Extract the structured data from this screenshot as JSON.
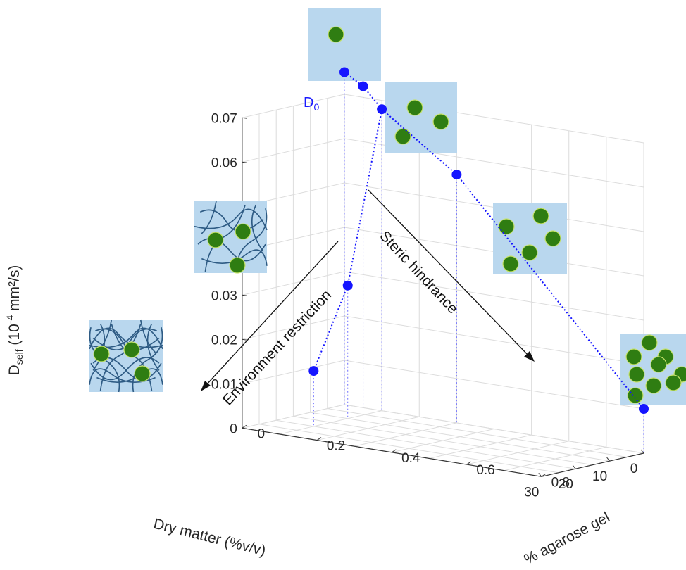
{
  "chart_data": {
    "type": "scatter",
    "projection": "3d",
    "grid": true,
    "axes": {
      "x": {
        "label": "Dry matter (%v/v)",
        "range": [
          0,
          30
        ],
        "ticks": [
          "0",
          "10",
          "20",
          "30"
        ]
      },
      "y": {
        "label": "% agarose gel",
        "range": [
          0,
          0.8
        ],
        "ticks": [
          "0",
          "0.2",
          "0.4",
          "0.6",
          "0.8"
        ]
      },
      "z": {
        "label_main": "D",
        "label_sub": "self",
        "label_rest": " (10",
        "label_sup": "-4",
        "label_end": " mm²/s)",
        "range": [
          0,
          0.07
        ],
        "ticks": [
          "0",
          "0.01",
          "0.02",
          "0.03",
          "0.04",
          "0.05",
          "0.06",
          "0.07"
        ]
      }
    },
    "series": [
      {
        "points": [
          {
            "dry_matter": 0,
            "agarose": 0,
            "d_self": 0.075
          },
          {
            "dry_matter": 0,
            "agarose": 0.05,
            "d_self": 0.0725
          },
          {
            "dry_matter": 0,
            "agarose": 0.1,
            "d_self": 0.068
          },
          {
            "dry_matter": 0,
            "agarose": 0.3,
            "d_self": 0.056
          },
          {
            "dry_matter": 0,
            "agarose": 0.8,
            "d_self": 0.01
          },
          {
            "dry_matter": 10,
            "agarose": 0.1,
            "d_self": 0.03
          },
          {
            "dry_matter": 20,
            "agarose": 0.1,
            "d_self": 0.0125
          }
        ]
      }
    ],
    "annotations": {
      "d0": {
        "main": "D",
        "sub": "0"
      },
      "steric": "Steric hindrance",
      "environment": "Environment restriction"
    },
    "colors": {
      "points": "#1515ff",
      "pane": "#b9d7ee",
      "particle": "#2f7d12",
      "fiber": "#2e5b84",
      "grid": "#dcdcdc",
      "axis": "#333333"
    },
    "insets": {
      "top": {
        "particles": 1,
        "fibers": false
      },
      "upper_right": {
        "particles": 3,
        "fibers": false
      },
      "right": {
        "particles": 5,
        "fibers": false
      },
      "far_right": {
        "particles": 9,
        "fibers": false
      },
      "left_upper": {
        "particles": 3,
        "fibers": true
      },
      "left_lower": {
        "particles": 3,
        "fibers": true
      }
    }
  }
}
